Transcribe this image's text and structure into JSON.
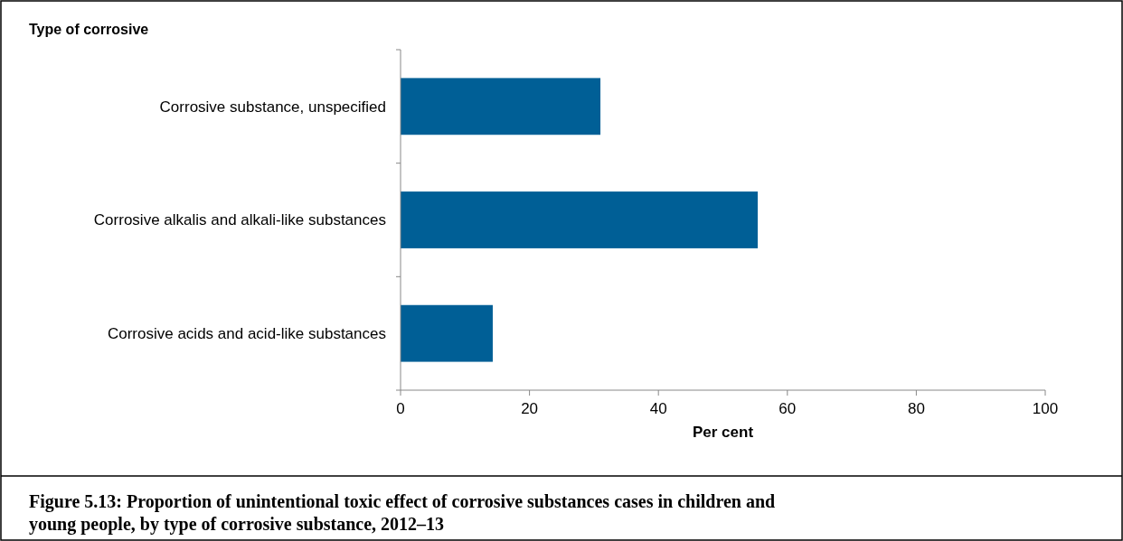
{
  "chart_data": {
    "type": "bar",
    "orientation": "horizontal",
    "title": "Figure 5.13: Proportion of unintentional toxic effect of corrosive substances cases in children and young people, by type of corrosive substance, 2012–13",
    "ylabel": "Type of corrosive",
    "xlabel": "Per cent",
    "categories": [
      "Corrosive substance, unspecified",
      "Corrosive alkalis and alkali-like substances",
      "Corrosive acids and acid-like substances"
    ],
    "values": [
      31,
      55.4,
      14.3
    ],
    "color": "#005f96",
    "xlim": [
      0,
      100
    ],
    "xticks": [
      0,
      20,
      40,
      60,
      80,
      100
    ],
    "grid": false
  }
}
